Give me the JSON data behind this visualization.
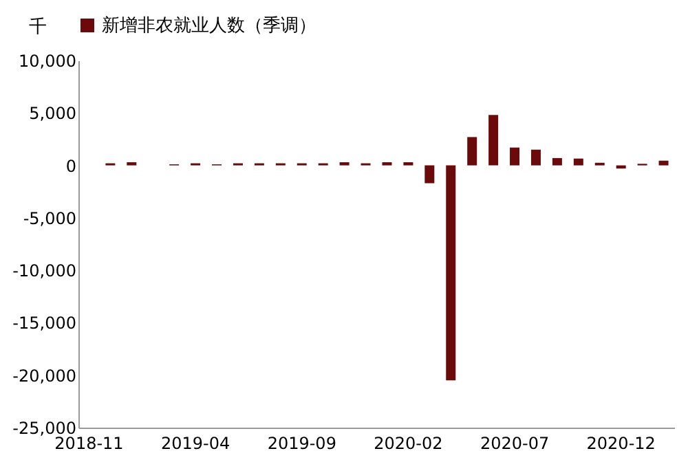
{
  "chart_data": {
    "type": "bar",
    "ylabel": "千",
    "legend": "top",
    "categories": [
      "2018-11",
      null,
      null,
      null,
      null,
      "2019-04",
      null,
      null,
      null,
      null,
      "2019-09",
      null,
      null,
      null,
      null,
      "2020-02",
      null,
      null,
      null,
      null,
      "2020-07",
      null,
      null,
      null,
      null,
      "2020-12",
      null,
      null
    ],
    "series": [
      {
        "name": "新增非农就业人数（季调）",
        "color": "#6b0a0a",
        "values": [
          null,
          200,
          300,
          0,
          100,
          200,
          100,
          200,
          200,
          200,
          200,
          200,
          300,
          200,
          300,
          300,
          -1700,
          -20500,
          2700,
          4800,
          1700,
          1500,
          700,
          650,
          250,
          -300,
          150,
          450
        ]
      }
    ],
    "ylim": [
      -25000,
      10000
    ],
    "yticks": [
      {
        "value": -25000,
        "label": "-25,000"
      },
      {
        "value": -20000,
        "label": "-20,000"
      },
      {
        "value": -15000,
        "label": "-15,000"
      },
      {
        "value": -10000,
        "label": "-10,000"
      },
      {
        "value": -5000,
        "label": "-5,000"
      },
      {
        "value": 0,
        "label": "0"
      },
      {
        "value": 5000,
        "label": "5,000"
      },
      {
        "value": 10000,
        "label": "10,000"
      }
    ],
    "grid": false
  }
}
